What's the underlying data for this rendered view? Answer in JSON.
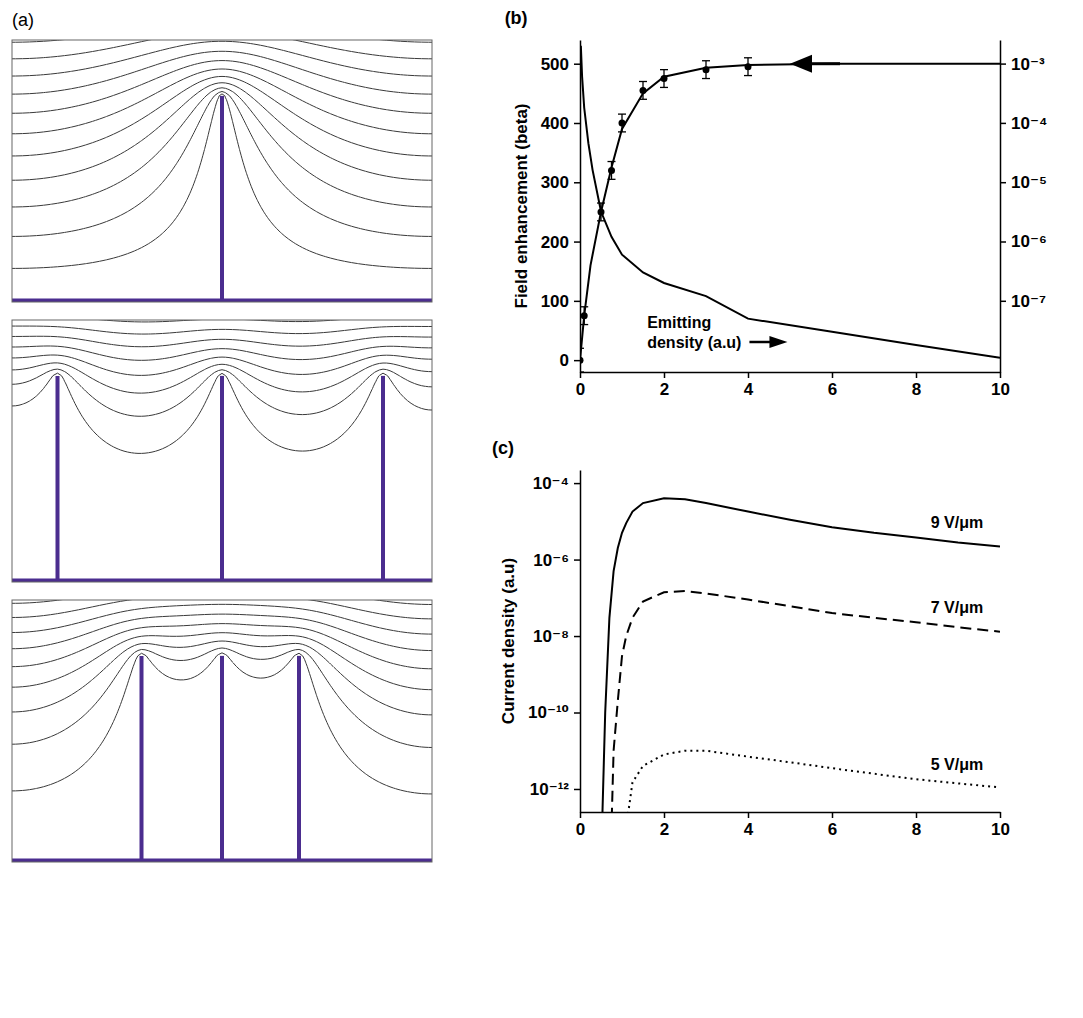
{
  "chart_data": [
    {
      "type": "diagram",
      "panel_label": "(a)"
    },
    {
      "type": "line",
      "panel_label": "(b)",
      "y_label": "Field enhancement (beta)",
      "log": "y2",
      "xlim": [
        0,
        10
      ],
      "xticks": [
        0,
        2,
        4,
        6,
        8,
        10
      ],
      "ylim": [
        -20,
        540
      ],
      "yticks": [
        0,
        100,
        200,
        300,
        400,
        500
      ],
      "y2lim": [
        6.3e-09,
        0.0025
      ],
      "y2ticks": [
        {
          "value": 0.001,
          "label": "10⁻³"
        },
        {
          "value": 0.0001,
          "label": "10⁻⁴"
        },
        {
          "value": 1e-05,
          "label": "10⁻⁵"
        },
        {
          "value": 1e-06,
          "label": "10⁻⁶"
        },
        {
          "value": 1e-07,
          "label": "10⁻⁷"
        }
      ],
      "series": [
        {
          "type": "scatter",
          "marker": "circle",
          "color": "#000000",
          "x": [
            0,
            0.1,
            0.5,
            0.75,
            1,
            1.5,
            2,
            3,
            4
          ],
          "values": [
            0,
            75,
            250,
            320,
            400,
            455,
            475,
            490,
            495
          ],
          "errors": [
            20,
            15,
            15,
            15,
            15,
            15,
            15,
            15,
            15
          ]
        },
        {
          "type": "line",
          "line_style": "solid",
          "color": "#000000",
          "x": [
            0,
            0.1,
            0.25,
            0.5,
            0.75,
            1,
            1.5,
            2,
            3,
            4,
            6,
            8,
            10
          ],
          "values": [
            0,
            75,
            160,
            250,
            325,
            390,
            450,
            478,
            493,
            498,
            500,
            500,
            500
          ]
        },
        {
          "name": "Emitting density (a.u)",
          "type": "line",
          "line_style": "solid",
          "color": "#000000",
          "axis": "y2",
          "x": [
            0.02,
            0.05,
            0.1,
            0.2,
            0.3,
            0.5,
            0.75,
            1,
            1.5,
            2,
            3,
            4,
            6,
            8,
            10
          ],
          "values": [
            0.002,
            0.0006,
            0.00018,
            4.5e-05,
            1.6e-05,
            3.2e-06,
            1.2e-06,
            6e-07,
            3e-07,
            2e-07,
            1.2e-07,
            5e-08,
            3e-08,
            1.8e-08,
            1.1e-08
          ]
        }
      ]
    },
    {
      "type": "line",
      "panel_label": "(c)",
      "y_label": "Current density (a.u)",
      "log": "y",
      "xlim": [
        0,
        10
      ],
      "xticks": [
        0,
        2,
        4,
        6,
        8,
        10
      ],
      "ylim": [
        2.5e-13,
        0.00022
      ],
      "yticks": [
        {
          "value": 0.0001,
          "label": "10⁻⁴"
        },
        {
          "value": 1e-06,
          "label": "10⁻⁶"
        },
        {
          "value": 1e-08,
          "label": "10⁻⁸"
        },
        {
          "value": 1e-10,
          "label": "10⁻¹⁰"
        },
        {
          "value": 1e-12,
          "label": "10⁻¹²"
        }
      ],
      "x": [
        0.5,
        0.6,
        0.7,
        0.8,
        0.9,
        1,
        1.1,
        1.25,
        1.5,
        2,
        2.5,
        3,
        4,
        5,
        6,
        7,
        8,
        9,
        10
      ],
      "series": [
        {
          "name": "9 V/μm",
          "line_style": "solid",
          "color": "#000000",
          "values": [
            1e-14,
            1e-10,
            3e-08,
            5e-07,
            2e-06,
            5e-06,
            9e-06,
            1.8e-05,
            3e-05,
            4e-05,
            3.8e-05,
            3e-05,
            1.8e-05,
            1.1e-05,
            7e-06,
            5e-06,
            3.8e-06,
            2.8e-06,
            2.2e-06
          ]
        },
        {
          "name": "7 V/μm",
          "line_style": "dashed",
          "color": "#000000",
          "values": [
            null,
            null,
            1e-15,
            1e-11,
            2e-10,
            3e-09,
            1e-08,
            3e-08,
            8e-08,
            1.4e-07,
            1.5e-07,
            1.3e-07,
            9e-08,
            6e-08,
            4e-08,
            3e-08,
            2.3e-08,
            1.7e-08,
            1.3e-08
          ]
        },
        {
          "name": "5 V/μm",
          "line_style": "dotted",
          "color": "#000000",
          "values": [
            null,
            null,
            null,
            null,
            null,
            1e-15,
            1e-13,
            1.5e-12,
            4e-12,
            8e-12,
            1e-11,
            1e-11,
            7e-12,
            5e-12,
            3.5e-12,
            2.5e-12,
            1.8e-12,
            1.4e-12,
            1.1e-12
          ]
        }
      ]
    }
  ]
}
